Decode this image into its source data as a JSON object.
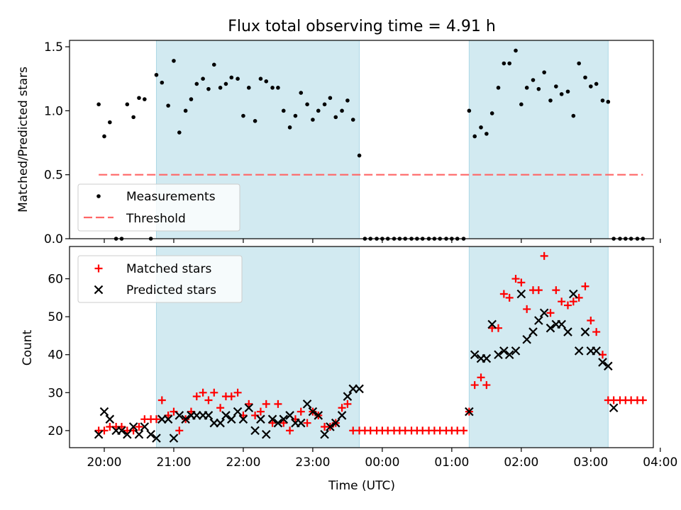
{
  "colors": {
    "shade": "#add8e6",
    "measurement": "#000000",
    "threshold": "#ff6666",
    "matched": "#ff0000",
    "predicted": "#000000"
  },
  "chart_data": [
    {
      "type": "scatter",
      "title": "Flux total observing time = 4.91 h",
      "ylabel": "Matched/Predicted stars",
      "xlabel": "",
      "ylim": [
        0,
        1.55
      ],
      "yticks": [
        "0.0",
        "0.5",
        "1.0",
        "1.5"
      ],
      "legend": {
        "position": "lower-left",
        "entries": [
          "Measurements",
          "Threshold"
        ]
      },
      "shaded_intervals": [
        [
          20.75,
          23.67
        ],
        [
          25.25,
          27.25
        ]
      ],
      "threshold": {
        "name": "Threshold",
        "value": 0.5,
        "x": [
          19.92,
          27.75
        ]
      },
      "series": [
        {
          "name": "Measurements",
          "x": [
            19.92,
            20.0,
            20.08,
            20.17,
            20.25,
            20.33,
            20.42,
            20.5,
            20.58,
            20.67,
            20.75,
            20.83,
            20.92,
            21.0,
            21.08,
            21.17,
            21.25,
            21.33,
            21.42,
            21.5,
            21.58,
            21.67,
            21.75,
            21.83,
            21.92,
            22.0,
            22.08,
            22.17,
            22.25,
            22.33,
            22.42,
            22.5,
            22.58,
            22.67,
            22.75,
            22.83,
            22.92,
            23.0,
            23.08,
            23.17,
            23.25,
            23.33,
            23.42,
            23.5,
            23.58,
            23.67,
            23.75,
            23.83,
            23.92,
            24.0,
            24.08,
            24.17,
            24.25,
            24.33,
            24.42,
            24.5,
            24.58,
            24.67,
            24.75,
            24.83,
            24.92,
            25.0,
            25.08,
            25.17,
            25.25,
            25.33,
            25.42,
            25.5,
            25.58,
            25.67,
            25.75,
            25.83,
            25.92,
            26.0,
            26.08,
            26.17,
            26.25,
            26.33,
            26.42,
            26.5,
            26.58,
            26.67,
            26.75,
            26.83,
            26.92,
            27.0,
            27.08,
            27.17,
            27.25,
            27.33,
            27.42,
            27.5,
            27.58,
            27.67,
            27.75
          ],
          "y": [
            1.05,
            0.8,
            0.91,
            0.0,
            0.0,
            1.05,
            0.95,
            1.1,
            1.09,
            0.0,
            1.28,
            1.22,
            1.04,
            1.39,
            0.83,
            1.0,
            1.09,
            1.21,
            1.25,
            1.17,
            1.36,
            1.18,
            1.21,
            1.26,
            1.25,
            0.96,
            1.18,
            0.92,
            1.25,
            1.23,
            1.18,
            1.18,
            1.0,
            0.87,
            0.96,
            1.14,
            1.05,
            0.93,
            1.0,
            1.05,
            1.1,
            0.95,
            1.0,
            1.08,
            0.93,
            0.65,
            0.0,
            0.0,
            0.0,
            0.0,
            0.0,
            0.0,
            0.0,
            0.0,
            0.0,
            0.0,
            0.0,
            0.0,
            0.0,
            0.0,
            0.0,
            0.0,
            0.0,
            0.0,
            1.0,
            0.8,
            0.87,
            0.82,
            0.98,
            1.18,
            1.37,
            1.37,
            1.47,
            1.05,
            1.18,
            1.24,
            1.17,
            1.3,
            1.08,
            1.19,
            1.13,
            1.15,
            0.96,
            1.37,
            1.26,
            1.19,
            1.21,
            1.08,
            1.07,
            0.0,
            0.0,
            0.0,
            0.0,
            0.0,
            0.0
          ]
        }
      ]
    },
    {
      "type": "scatter",
      "title": "",
      "ylabel": "Count",
      "xlabel": "Time (UTC)",
      "ylim": [
        15.5,
        68.5
      ],
      "yticks": [
        "20",
        "30",
        "40",
        "50",
        "60"
      ],
      "xlim": [
        19.5,
        27.9
      ],
      "xticks": [
        "20:00",
        "21:00",
        "22:00",
        "23:00",
        "00:00",
        "01:00",
        "02:00",
        "03:00",
        "04:00"
      ],
      "legend": {
        "position": "top-left",
        "entries": [
          "Matched stars",
          "Predicted stars"
        ]
      },
      "shaded_intervals": [
        [
          20.75,
          23.67
        ],
        [
          25.25,
          27.25
        ]
      ],
      "series": [
        {
          "name": "Matched stars",
          "marker": "plus",
          "x": [
            19.92,
            20.0,
            20.08,
            20.17,
            20.25,
            20.33,
            20.42,
            20.5,
            20.58,
            20.67,
            20.75,
            20.83,
            20.92,
            21.0,
            21.08,
            21.17,
            21.25,
            21.33,
            21.42,
            21.5,
            21.58,
            21.67,
            21.75,
            21.83,
            21.92,
            22.0,
            22.08,
            22.17,
            22.25,
            22.33,
            22.42,
            22.5,
            22.58,
            22.67,
            22.75,
            22.83,
            22.92,
            23.0,
            23.08,
            23.17,
            23.25,
            23.33,
            23.42,
            23.5,
            23.58,
            23.67,
            23.75,
            23.83,
            23.92,
            24.0,
            24.08,
            24.17,
            24.25,
            24.33,
            24.42,
            24.5,
            24.58,
            24.67,
            24.75,
            24.83,
            24.92,
            25.0,
            25.08,
            25.17,
            25.25,
            25.33,
            25.42,
            25.5,
            25.58,
            25.67,
            25.75,
            25.83,
            25.92,
            26.0,
            26.08,
            26.17,
            26.25,
            26.33,
            26.42,
            26.5,
            26.58,
            26.67,
            26.75,
            26.83,
            26.92,
            27.0,
            27.08,
            27.17,
            27.25,
            27.33,
            27.42,
            27.5,
            27.58,
            27.67,
            27.75
          ],
          "y": [
            20,
            20,
            21,
            21,
            21,
            20,
            20,
            21,
            23,
            23,
            23,
            28,
            24,
            25,
            20,
            23,
            25,
            29,
            30,
            28,
            30,
            26,
            29,
            29,
            30,
            24,
            27,
            24,
            25,
            27,
            22,
            27,
            22,
            20,
            23,
            25,
            22,
            25,
            24,
            21,
            21,
            22,
            26,
            27,
            20,
            20,
            20,
            20,
            20,
            20,
            20,
            20,
            20,
            20,
            20,
            20,
            20,
            20,
            20,
            20,
            20,
            20,
            20,
            20,
            25,
            32,
            34,
            32,
            47,
            47,
            56,
            55,
            60,
            59,
            52,
            57,
            57,
            66,
            51,
            57,
            54,
            53,
            54,
            55,
            58,
            49,
            46,
            40,
            28,
            28,
            28,
            28,
            28,
            28,
            28
          ]
        },
        {
          "name": "Predicted stars",
          "marker": "x",
          "x": [
            19.92,
            20.0,
            20.08,
            20.17,
            20.25,
            20.33,
            20.42,
            20.5,
            20.58,
            20.67,
            20.75,
            20.83,
            20.92,
            21.0,
            21.08,
            21.17,
            21.25,
            21.33,
            21.42,
            21.5,
            21.58,
            21.67,
            21.75,
            21.83,
            21.92,
            22.0,
            22.08,
            22.17,
            22.25,
            22.33,
            22.42,
            22.5,
            22.58,
            22.67,
            22.75,
            22.83,
            22.92,
            23.0,
            23.08,
            23.17,
            23.25,
            23.33,
            23.42,
            23.5,
            23.58,
            23.67,
            25.25,
            25.33,
            25.42,
            25.5,
            25.58,
            25.67,
            25.75,
            25.83,
            25.92,
            26.0,
            26.08,
            26.17,
            26.25,
            26.33,
            26.42,
            26.5,
            26.58,
            26.67,
            26.75,
            26.83,
            26.92,
            27.0,
            27.08,
            27.17,
            27.25,
            27.33
          ],
          "y": [
            19,
            25,
            23,
            20,
            20,
            19,
            21,
            19,
            21,
            19,
            18,
            23,
            23,
            18,
            24,
            23,
            24,
            24,
            24,
            24,
            22,
            22,
            24,
            23,
            25,
            23,
            26,
            20,
            23,
            19,
            23,
            22,
            23,
            24,
            22,
            22,
            27,
            25,
            24,
            19,
            21,
            22,
            24,
            29,
            31,
            31,
            25,
            40,
            39,
            39,
            48,
            40,
            41,
            40,
            41,
            56,
            44,
            46,
            49,
            51,
            47,
            48,
            48,
            46,
            56,
            41,
            46,
            41,
            41,
            38,
            37,
            26
          ]
        }
      ]
    }
  ]
}
